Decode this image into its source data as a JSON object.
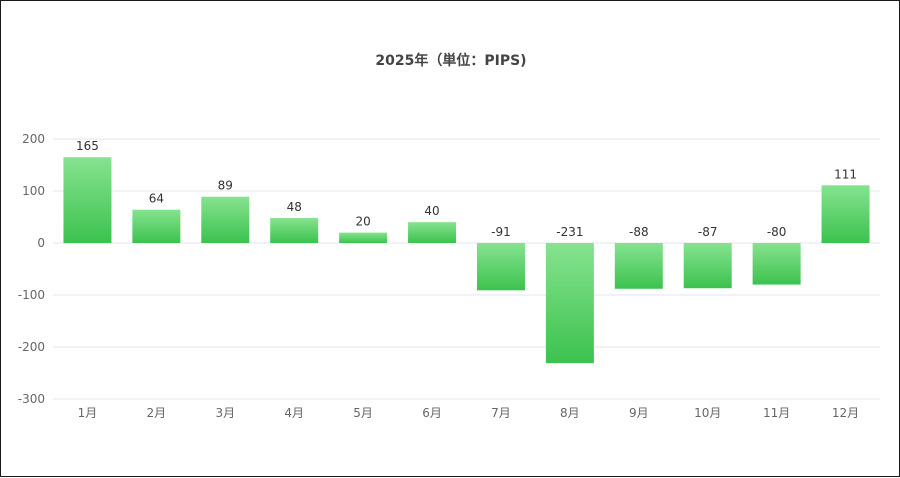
{
  "chart_data": {
    "type": "bar",
    "title": "2025年（単位：PIPS)",
    "categories": [
      "1月",
      "2月",
      "3月",
      "4月",
      "5月",
      "6月",
      "7月",
      "8月",
      "9月",
      "10月",
      "11月",
      "12月"
    ],
    "values": [
      165,
      64,
      89,
      48,
      20,
      40,
      -91,
      -231,
      -88,
      -87,
      -80,
      111
    ],
    "ylim": [
      -300,
      200
    ],
    "yticks": [
      200,
      100,
      0,
      -100,
      -200,
      -300
    ],
    "grid": true,
    "bar_color_top": "#86e38f",
    "bar_color_bottom": "#3cc24e"
  }
}
